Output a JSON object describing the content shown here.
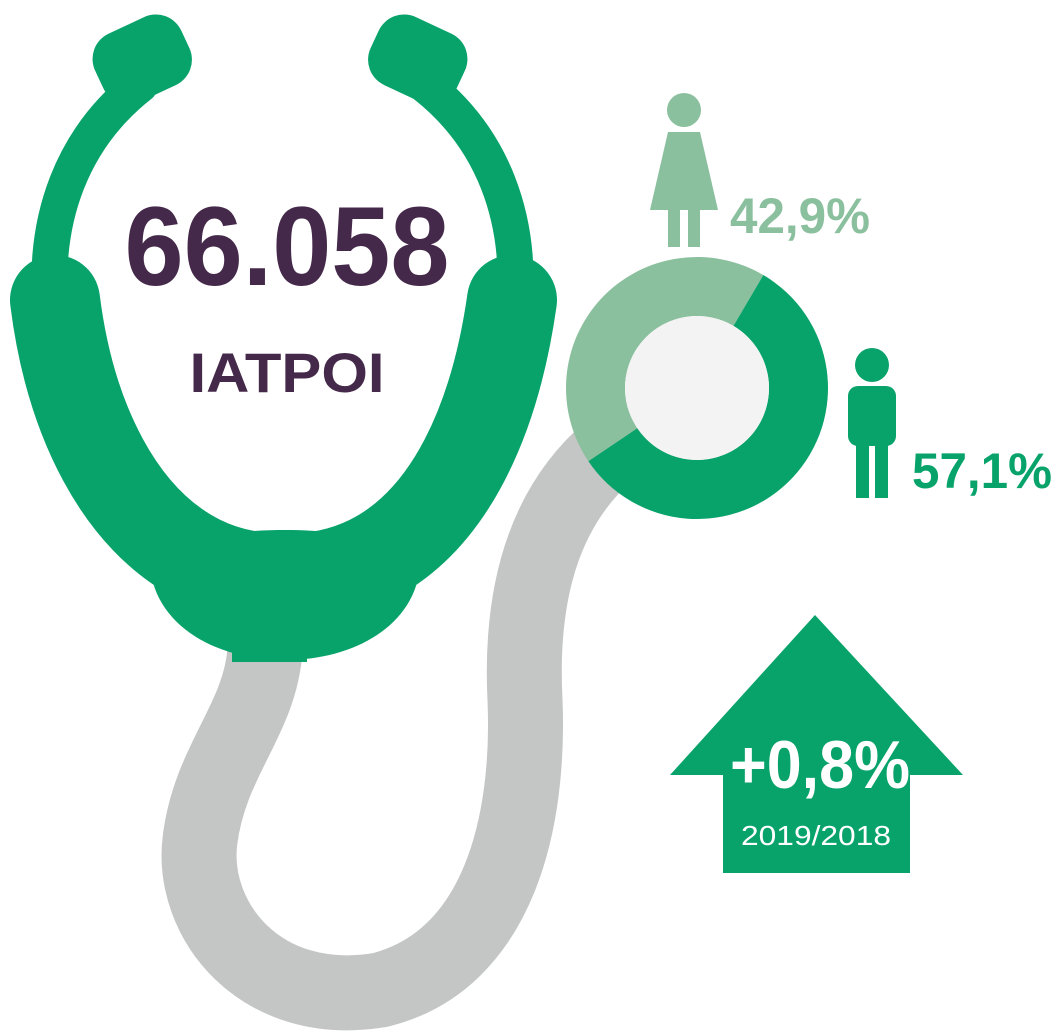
{
  "headline": {
    "value": "66.058",
    "label": "IATPOI"
  },
  "chart_data": {
    "type": "pie",
    "values": [
      42.9,
      57.1
    ],
    "value_labels": [
      "42,9%",
      "57,1%"
    ],
    "colors": [
      "#8bc09e",
      "#08a36a"
    ]
  },
  "change": {
    "value": "+0,8%",
    "period": "2019/2018"
  }
}
